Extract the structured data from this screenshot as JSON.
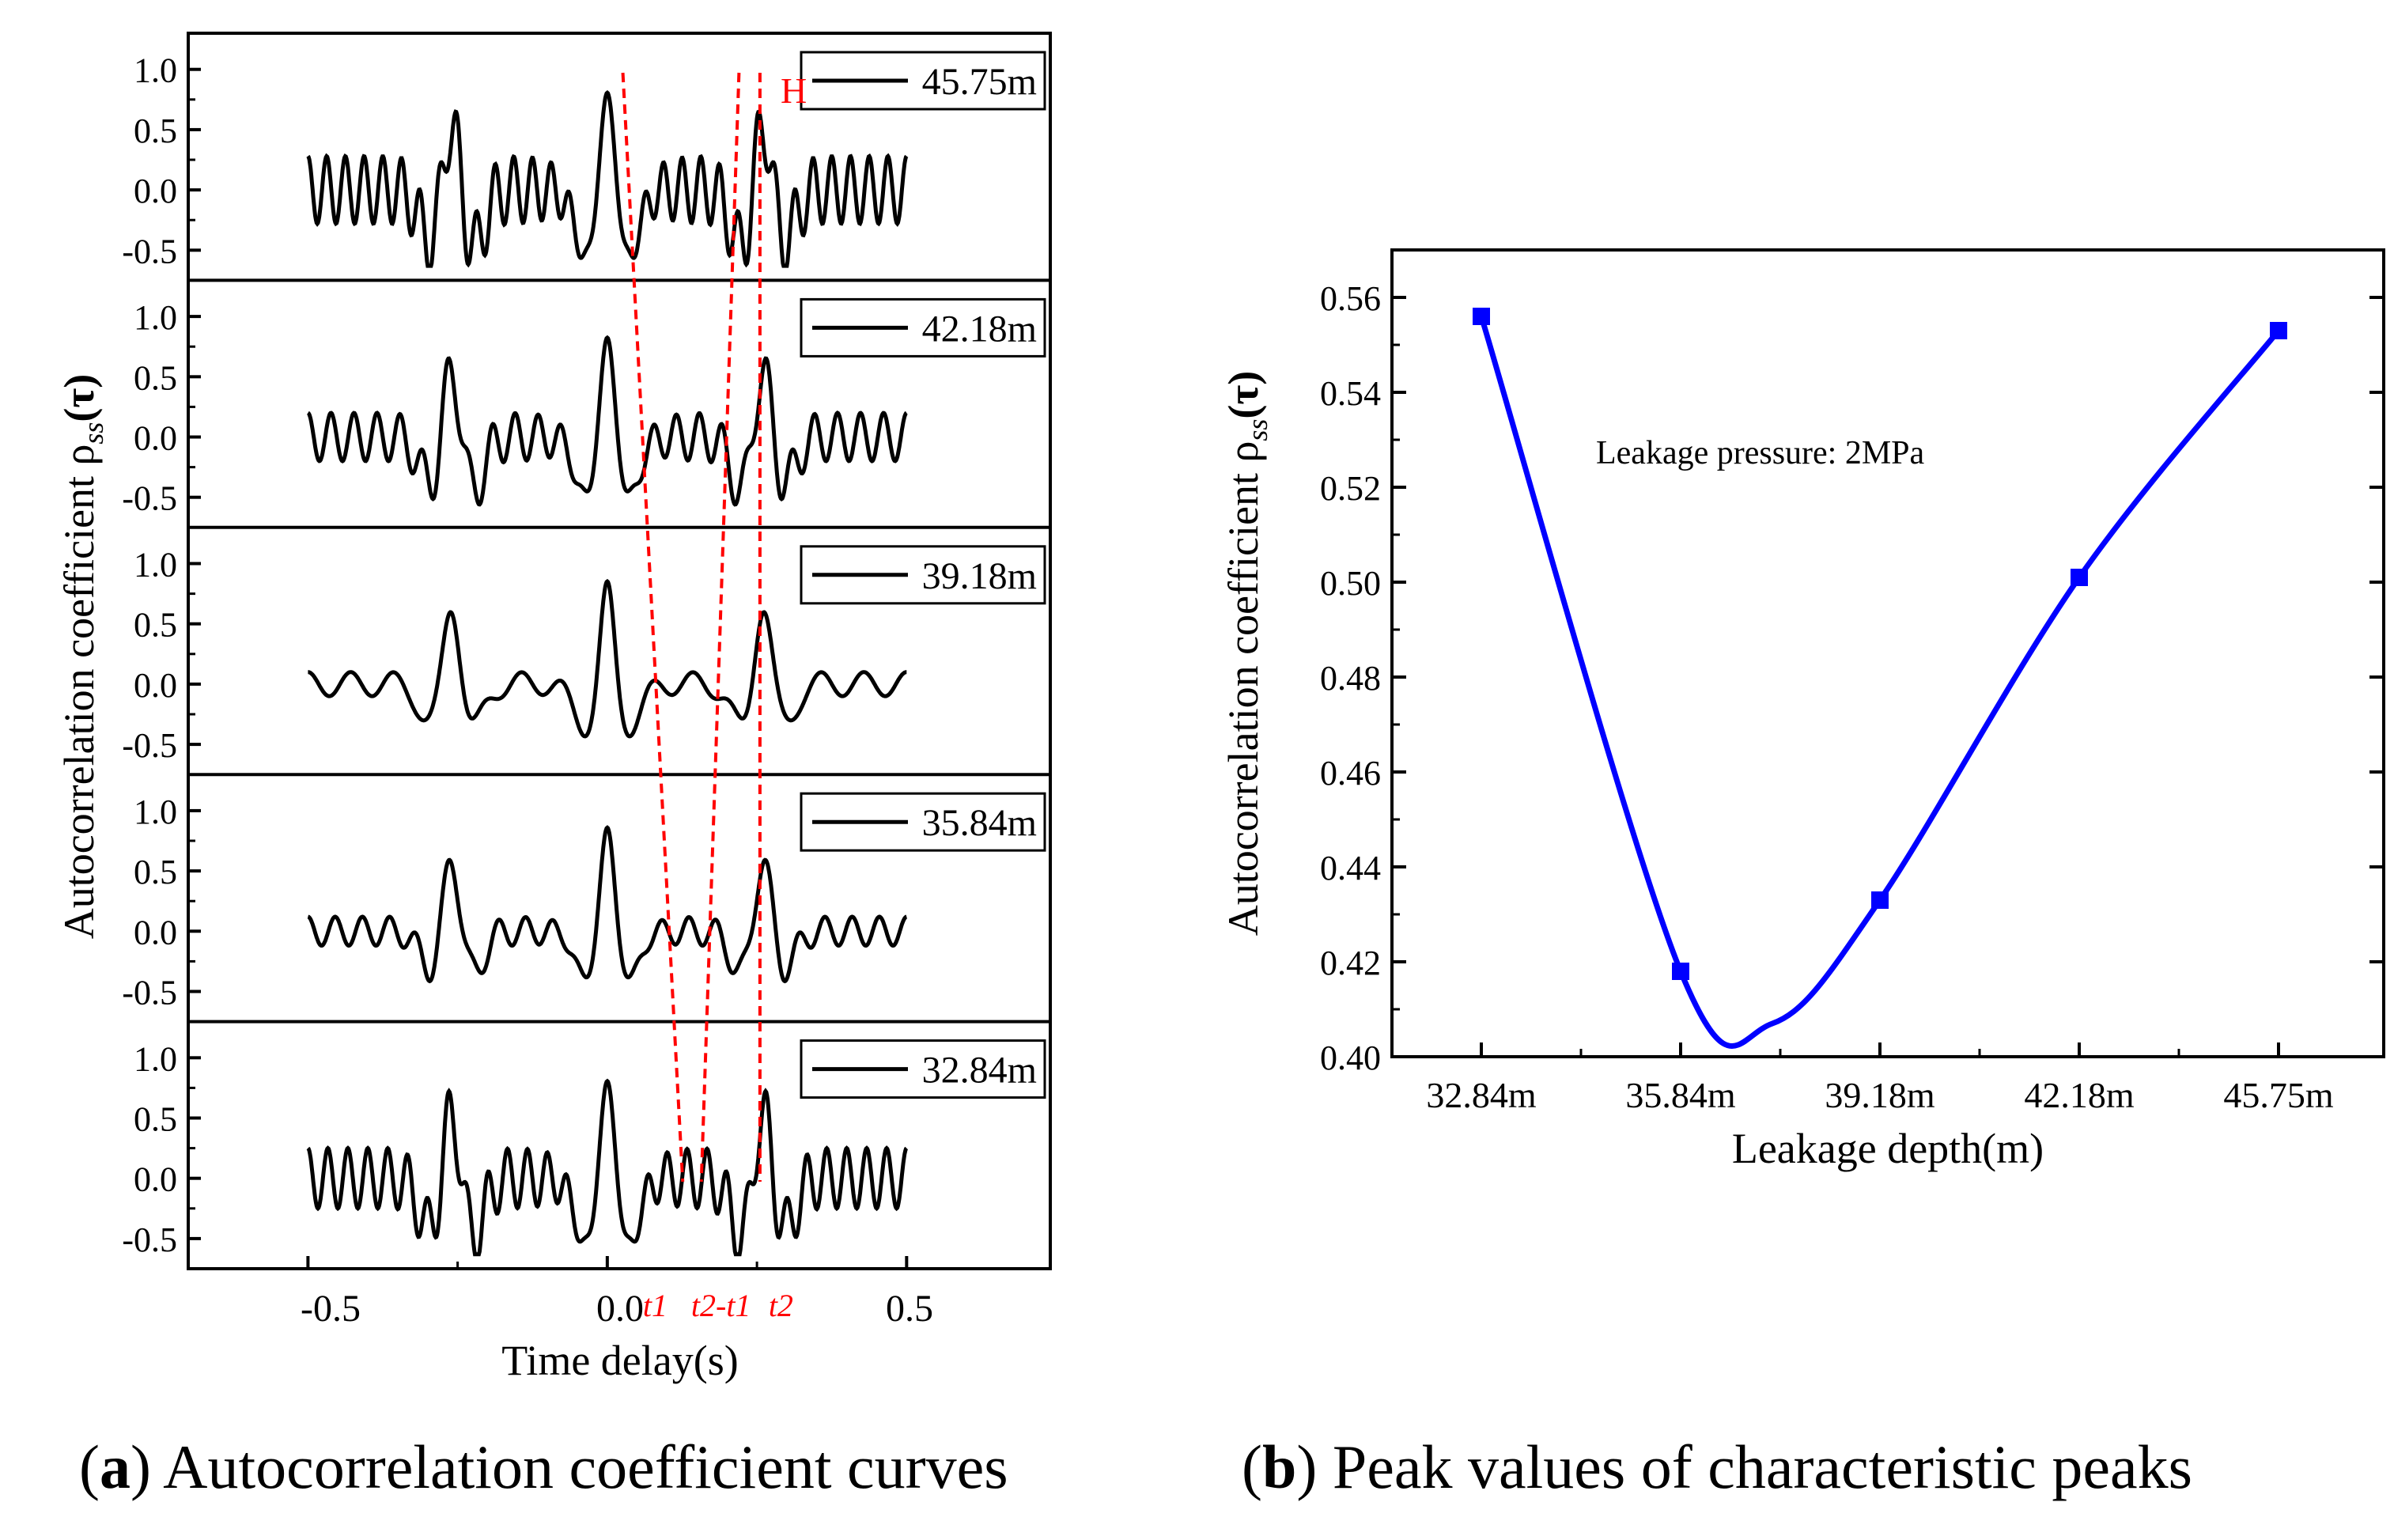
{
  "chart_data": [
    {
      "type": "line",
      "panel_label": "a",
      "caption": "Autocorrelation coefficient curves",
      "xlabel": "Time delay(s)",
      "ylabel": "Autocorrelation coefficient ρss(τ)",
      "ylabel_parts": {
        "main": "Autocorrelation coefficient ρ",
        "sub": "ss",
        "tail": "(τ)"
      },
      "xlim": [
        -0.7,
        0.74
      ],
      "ylim": [
        -0.75,
        1.3
      ],
      "xticks": [
        "-0.5",
        "0.0",
        "0.5"
      ],
      "xtick_values": [
        -0.5,
        0.0,
        0.5
      ],
      "yticks": [
        "1.0",
        "0.5",
        "0.0",
        "-0.5"
      ],
      "ytick_values": [
        1.0,
        0.5,
        0.0,
        -0.5
      ],
      "series_color": "#000000",
      "marker_color": "#ff0000",
      "marker_x": [
        0.026,
        0.22,
        0.255
      ],
      "marker_labels": [
        {
          "label": "t1",
          "x": 0.08
        },
        {
          "label": "t2-t1",
          "x": 0.19
        },
        {
          "label": "t2",
          "x": 0.29
        }
      ],
      "top_annotation": "H",
      "series": [
        {
          "name": "45.75m",
          "peak_mid": 0.7,
          "trough": -0.55,
          "wiggle": 0.28,
          "freq": 32
        },
        {
          "name": "42.18m",
          "peak_mid": 0.7,
          "trough": -0.5,
          "wiggle": 0.2,
          "freq": 26
        },
        {
          "name": "39.18m",
          "peak_mid": 0.78,
          "trough": -0.42,
          "wiggle": 0.1,
          "freq": 14
        },
        {
          "name": "35.84m",
          "peak_mid": 0.7,
          "trough": -0.4,
          "wiggle": 0.12,
          "freq": 22
        },
        {
          "name": "32.84m",
          "peak_mid": 0.7,
          "trough": -0.55,
          "wiggle": 0.25,
          "freq": 30
        }
      ]
    },
    {
      "type": "line",
      "panel_label": "b",
      "caption": "Peak values of characteristic peaks",
      "xlabel": "Leakage depth(m)",
      "ylabel": "Autocorrelation coefficient ρss(τ)",
      "ylabel_parts": {
        "main": "Autocorrelation coefficient ρ",
        "sub": "ss",
        "tail": "(τ)"
      },
      "categories": [
        "32.84m",
        "35.84m",
        "39.18m",
        "42.18m",
        "45.75m"
      ],
      "values": [
        0.556,
        0.418,
        0.433,
        0.501,
        0.553
      ],
      "curve_min": 0.407,
      "ylim": [
        0.4,
        0.57
      ],
      "yticks": [
        "0.40",
        "0.42",
        "0.44",
        "0.46",
        "0.48",
        "0.50",
        "0.52",
        "0.54",
        "0.56"
      ],
      "annotation": "Leakage pressure: 2MPa",
      "series_color": "#0000ff",
      "marker": "square"
    }
  ]
}
